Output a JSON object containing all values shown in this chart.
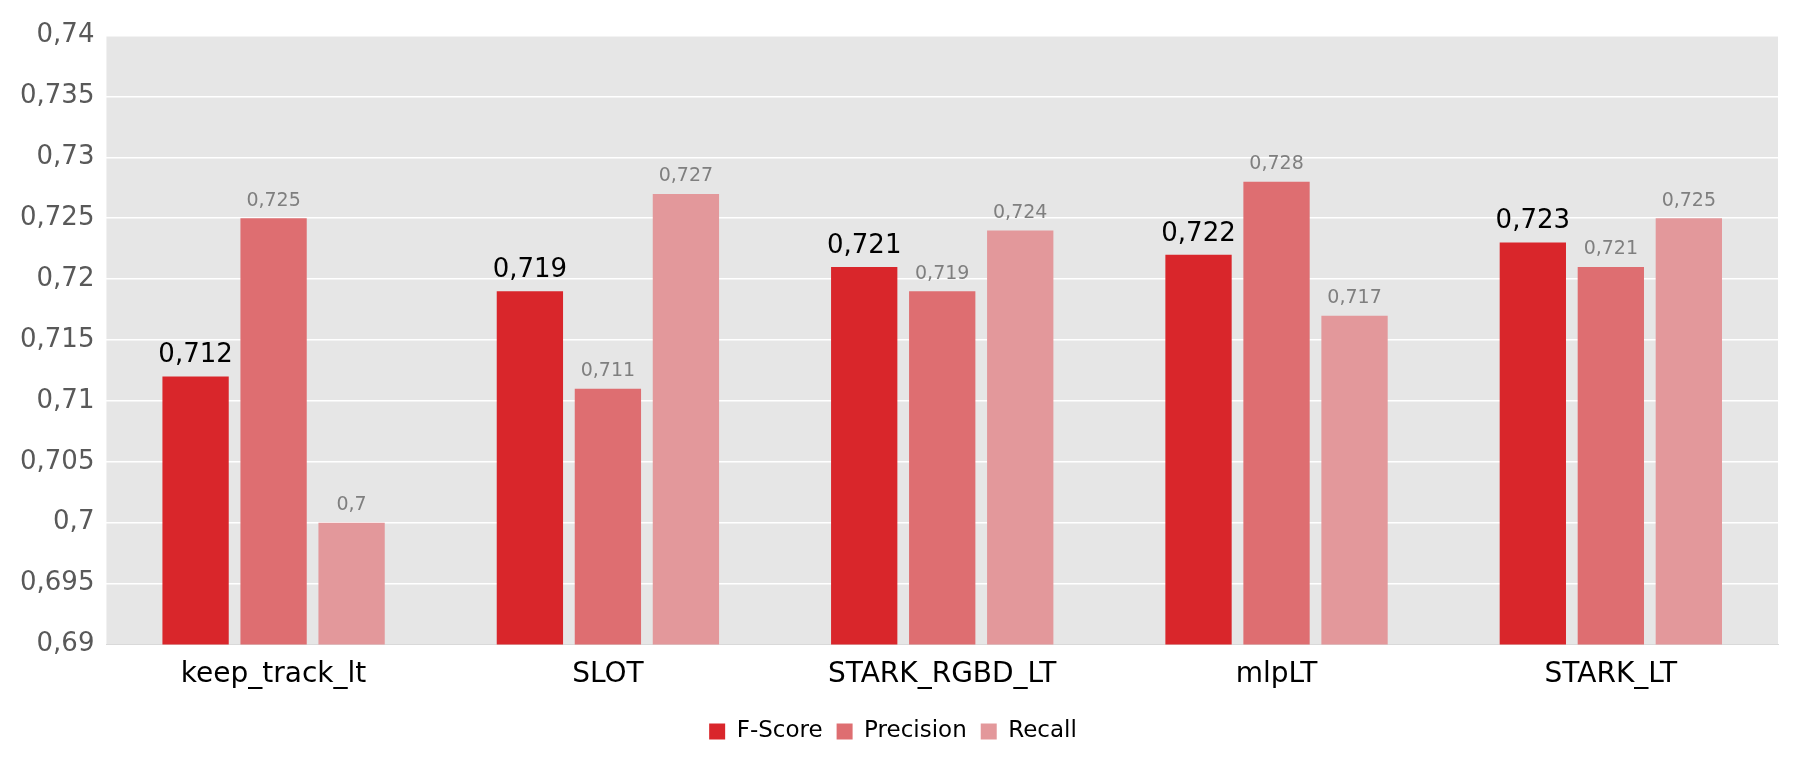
{
  "chart_data": {
    "type": "bar",
    "categories": [
      "keep_track_lt",
      "SLOT",
      "STARK_RGBD_LT",
      "mlpLT",
      "STARK_LT"
    ],
    "series": [
      {
        "name": "F-Score",
        "color": "#d9262b",
        "values": [
          0.712,
          0.719,
          0.721,
          0.722,
          0.723
        ],
        "value_labels": [
          "0,712",
          "0,719",
          "0,721",
          "0,722",
          "0,723"
        ]
      },
      {
        "name": "Precision",
        "color": "#de6e71",
        "values": [
          0.725,
          0.711,
          0.719,
          0.728,
          0.721
        ],
        "value_labels": [
          "0,725",
          "0,711",
          "0,719",
          "0,728",
          "0,721"
        ]
      },
      {
        "name": "Recall",
        "color": "#e3989b",
        "values": [
          0.7,
          0.727,
          0.724,
          0.717,
          0.725
        ],
        "value_labels": [
          "0,7",
          "0,727",
          "0,724",
          "0,717",
          "0,725"
        ]
      }
    ],
    "ylim": [
      0.69,
      0.74
    ],
    "yticks": [
      {
        "value": 0.69,
        "label": "0,69"
      },
      {
        "value": 0.695,
        "label": "0,695"
      },
      {
        "value": 0.7,
        "label": "0,7"
      },
      {
        "value": 0.705,
        "label": "0,705"
      },
      {
        "value": 0.71,
        "label": "0,71"
      },
      {
        "value": 0.715,
        "label": "0,715"
      },
      {
        "value": 0.72,
        "label": "0,72"
      },
      {
        "value": 0.725,
        "label": "0,725"
      },
      {
        "value": 0.73,
        "label": "0,73"
      },
      {
        "value": 0.735,
        "label": "0,735"
      },
      {
        "value": 0.74,
        "label": "0,74"
      }
    ],
    "grid": "y",
    "legend": "bottom"
  }
}
